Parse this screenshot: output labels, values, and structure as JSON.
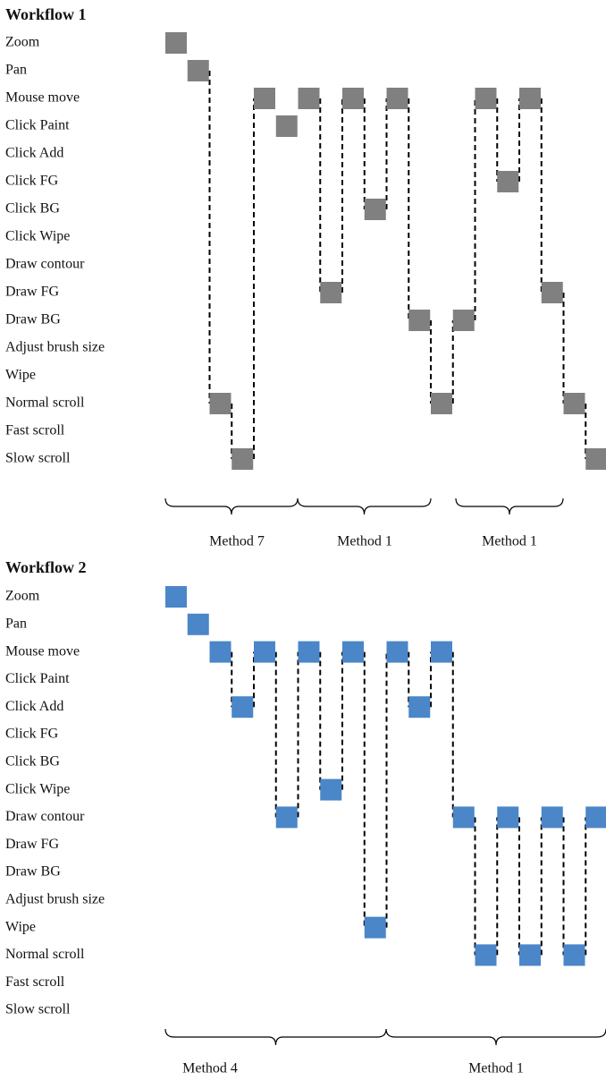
{
  "workflows": [
    {
      "title": "Workflow 1",
      "actions": [
        "Zoom",
        "Pan",
        "Mouse move",
        "Click Paint",
        "Click Add",
        "Click FG",
        "Click BG",
        "Click Wipe",
        "Draw contour",
        "Draw FG",
        "Draw BG",
        "Adjust brush size",
        "Wipe",
        "Normal scroll",
        "Fast scroll",
        "Slow scroll"
      ],
      "steps": [
        0,
        1,
        13,
        15,
        2,
        3,
        2,
        9,
        2,
        6,
        2,
        10,
        13,
        10,
        2,
        5,
        2,
        9,
        13,
        15
      ],
      "methods": [
        "Method 7",
        "Method 1",
        "Method 1"
      ]
    },
    {
      "title": "Workflow 2",
      "actions": [
        "Zoom",
        "Pan",
        "Mouse move",
        "Click Paint",
        "Click Add",
        "Click FG",
        "Click BG",
        "Click Wipe",
        "Draw contour",
        "Draw FG",
        "Draw BG",
        "Adjust brush size",
        "Wipe",
        "Normal scroll",
        "Fast scroll",
        "Slow scroll"
      ],
      "steps": [
        0,
        1,
        2,
        4,
        2,
        8,
        2,
        7,
        2,
        12,
        2,
        4,
        2,
        8,
        13,
        8,
        13,
        8,
        13,
        8
      ],
      "methods": [
        "Method 4",
        "Method 1"
      ]
    }
  ]
}
